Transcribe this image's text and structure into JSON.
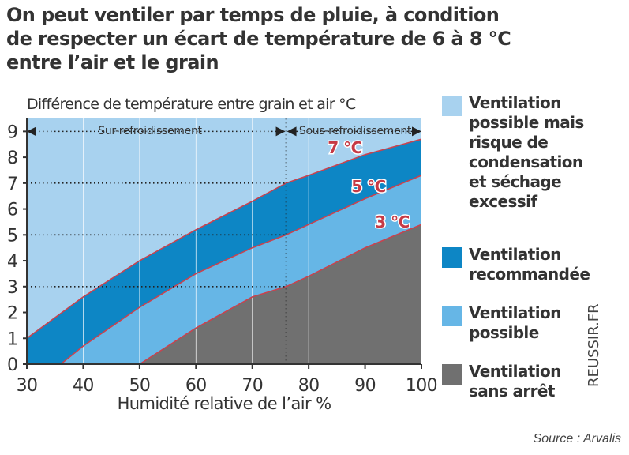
{
  "headline": {
    "lines": [
      "On peut ventiler par temps de pluie, à condition",
      "de respecter un écart de température de 6 à 8 °C",
      "entre l’air et le grain"
    ]
  },
  "chart_data": {
    "type": "area",
    "title": "Différence de température entre grain et air °C",
    "xlabel": "Humidité relative de l’air %",
    "ylabel": "",
    "xlim": [
      30,
      100
    ],
    "ylim": [
      0,
      9.5
    ],
    "x_ticks": [
      30,
      40,
      50,
      60,
      70,
      80,
      90,
      100
    ],
    "y_ticks": [
      0,
      1,
      2,
      3,
      4,
      5,
      6,
      7,
      8,
      9
    ],
    "grid": true,
    "series": [
      {
        "name": "7 °C",
        "x": [
          30,
          40,
          50,
          60,
          70,
          76,
          80,
          90,
          100
        ],
        "y": [
          1,
          2.6,
          4,
          5.2,
          6.3,
          7,
          7.3,
          8.1,
          8.7
        ]
      },
      {
        "name": "5 °C",
        "x": [
          36,
          40,
          50,
          60,
          70,
          76,
          80,
          90,
          100
        ],
        "y": [
          0,
          0.7,
          2.2,
          3.5,
          4.5,
          5,
          5.4,
          6.4,
          7.3
        ]
      },
      {
        "name": "3 °C",
        "x": [
          50,
          60,
          70,
          76,
          80,
          90,
          100
        ],
        "y": [
          0,
          1.4,
          2.6,
          3,
          3.4,
          4.5,
          5.4
        ]
      }
    ],
    "reference_lines": {
      "vertical_x": 76,
      "horizontal_y": [
        3,
        5,
        7,
        9
      ]
    },
    "annotations": {
      "left_zone": "Sur-refroidissement",
      "right_zone": "Sous-refroidissement"
    },
    "colors": {
      "ventilation_possible_condensation": "#a8d2ef",
      "ventilation_recommandee": "#0d86c5",
      "ventilation_possible": "#66b6e6",
      "ventilation_sans_arret": "#707070",
      "curve_stroke": "#c9424e",
      "curve_label": "#c63a45",
      "axis": "#333333",
      "grid": "#ffffff"
    },
    "legend": {
      "position": "right",
      "items": [
        {
          "label": "Ventilation possible mais risque de condensation et séchage excessif",
          "color": "#a8d2ef"
        },
        {
          "label": "Ventilation recommandée",
          "color": "#0d86c5"
        },
        {
          "label": "Ventilation possible",
          "color": "#66b6e6"
        },
        {
          "label": "Ventilation sans arrêt",
          "color": "#707070"
        }
      ]
    }
  },
  "credit": "REUSSIR.FR",
  "source": "Source : Arvalis"
}
